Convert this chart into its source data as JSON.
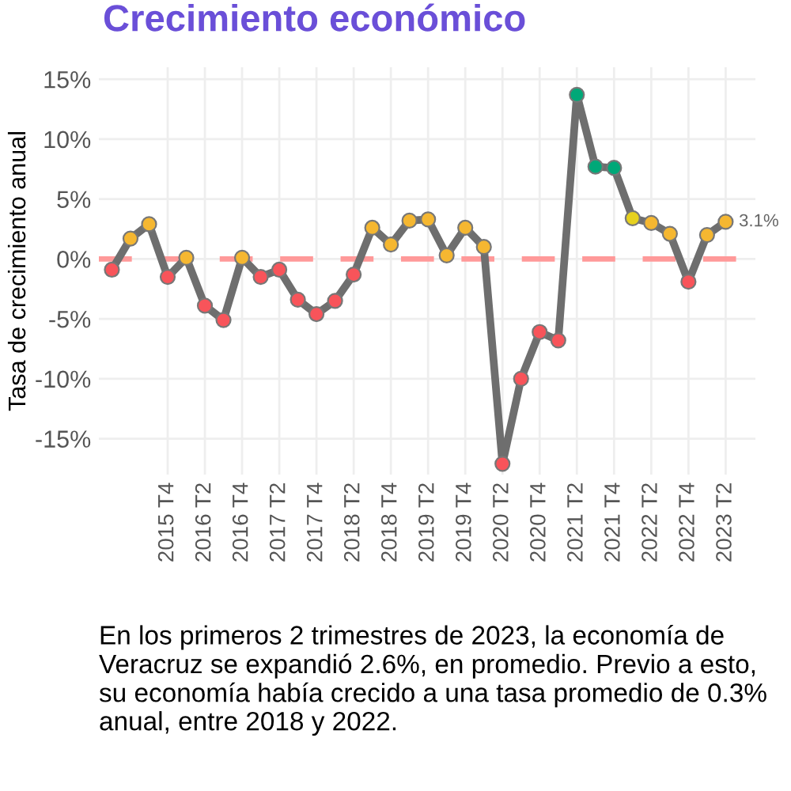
{
  "chart_data": {
    "type": "line",
    "title": "Crecimiento económico",
    "ylabel": "Tasa de crecimiento anual",
    "categories": [
      null,
      null,
      null,
      "2015 T4",
      null,
      "2016 T2",
      null,
      "2016 T4",
      null,
      "2017 T2",
      null,
      "2017 T4",
      null,
      "2018 T2",
      null,
      "2018 T4",
      null,
      "2019 T2",
      null,
      "2019 T4",
      null,
      "2020 T2",
      null,
      "2020 T4",
      null,
      "2021 T2",
      null,
      "2021 T4",
      null,
      "2022 T2",
      null,
      "2022 T4",
      null,
      "2023 T2"
    ],
    "series": [
      {
        "color": "#6e6e6e",
        "values": [
          -0.9,
          1.7,
          2.9,
          -1.5,
          0.1,
          -3.9,
          -5.1,
          0.1,
          -1.5,
          -0.9,
          -3.4,
          -4.6,
          -3.5,
          -1.3,
          2.6,
          1.2,
          3.2,
          3.3,
          0.3,
          2.6,
          1.0,
          -17.1,
          -10.0,
          -6.1,
          -6.8,
          13.7,
          7.7,
          7.6,
          3.4,
          3.0,
          2.1,
          -1.9,
          2.0,
          3.1
        ],
        "colors": [
          "#f8545a",
          "#f5b731",
          "#f5b731",
          "#f8545a",
          "#f5b731",
          "#f8545a",
          "#f8545a",
          "#f5b731",
          "#f8545a",
          "#f8545a",
          "#f8545a",
          "#f8545a",
          "#f8545a",
          "#f8545a",
          "#f5b731",
          "#f5b731",
          "#f5b731",
          "#f5b731",
          "#f5b731",
          "#f5b731",
          "#f5b731",
          "#f8545a",
          "#f8545a",
          "#f8545a",
          "#f8545a",
          "#00a878",
          "#00a878",
          "#00a878",
          "#e6d11f",
          "#f5b731",
          "#f5b731",
          "#f8545a",
          "#f5b731",
          "#f5b731"
        ],
        "value_labels": [
          null,
          null,
          null,
          null,
          null,
          null,
          null,
          null,
          null,
          null,
          null,
          null,
          null,
          null,
          null,
          null,
          null,
          null,
          null,
          null,
          null,
          null,
          null,
          null,
          null,
          null,
          null,
          null,
          null,
          null,
          null,
          null,
          null,
          "3.1%"
        ]
      }
    ],
    "ylim": [
      -18,
      16
    ],
    "yticks": [
      {
        "value": -15,
        "label": "-15%"
      },
      {
        "value": -10,
        "label": "-10%"
      },
      {
        "value": -5,
        "label": "-5%"
      },
      {
        "value": 0,
        "label": "0%"
      },
      {
        "value": 5,
        "label": "5%"
      },
      {
        "value": 10,
        "label": "10%"
      },
      {
        "value": 15,
        "label": "15%"
      }
    ],
    "ref_lines": [
      {
        "axis": "y",
        "value": 0,
        "color": "#ff9999",
        "line_style": "dashed"
      }
    ],
    "grid": true,
    "marker": "circle",
    "line_style": "solid",
    "annotations": [
      "En los primeros 2 trimestres de 2023, la economía de Veracruz se expandió 2.6%, en promedio. Previo a esto, su economía había crecido a una tasa promedio de 0.3% anual, entre 2018 y 2022."
    ]
  }
}
